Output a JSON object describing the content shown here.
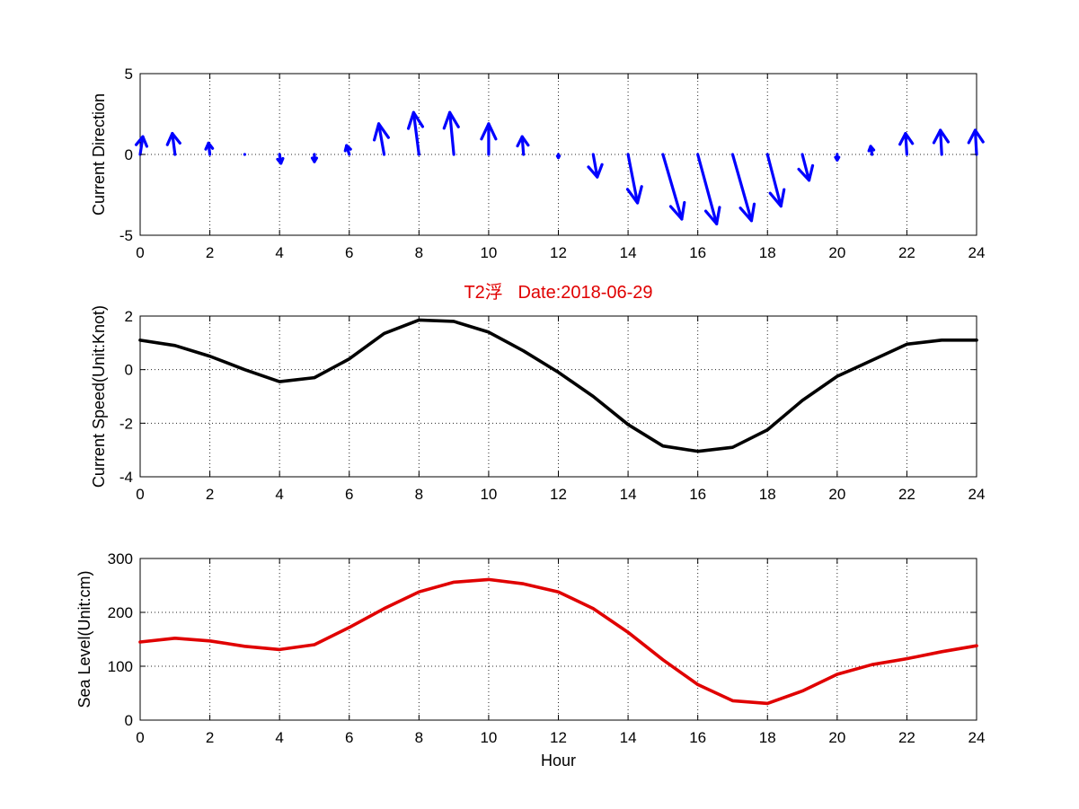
{
  "chart_data": [
    {
      "type": "quiver",
      "ylabel": "Current Direction",
      "xlim": [
        0,
        24
      ],
      "ylim": [
        -5,
        5
      ],
      "xticks": [
        "0",
        "2",
        "4",
        "6",
        "8",
        "10",
        "12",
        "14",
        "16",
        "18",
        "20",
        "22",
        "24"
      ],
      "yticks": [
        "5",
        "0",
        "-5"
      ],
      "grid": true,
      "color": "#0000ff",
      "x": [
        0,
        1,
        2,
        3,
        4,
        5,
        6,
        7,
        8,
        9,
        10,
        11,
        12,
        13,
        14,
        15,
        16,
        17,
        18,
        19,
        20,
        21,
        22,
        23,
        24
      ],
      "u": [
        0.1,
        -0.1,
        -0.05,
        0.0,
        0.05,
        0.0,
        -0.1,
        -0.2,
        -0.2,
        -0.15,
        0.0,
        -0.05,
        0.0,
        0.15,
        0.35,
        0.7,
        0.7,
        0.7,
        0.5,
        0.25,
        0.0,
        -0.05,
        -0.05,
        -0.05,
        -0.05
      ],
      "v": [
        1.1,
        1.3,
        0.7,
        -0.05,
        -0.55,
        -0.45,
        0.55,
        1.9,
        2.6,
        2.6,
        1.9,
        1.1,
        -0.2,
        -1.4,
        -3.0,
        -4.0,
        -4.3,
        -4.1,
        -3.2,
        -1.6,
        -0.35,
        0.5,
        1.3,
        1.5,
        1.5
      ]
    },
    {
      "type": "line",
      "title": "T2浮   Date:2018-06-29",
      "ylabel": "Current Speed(Unit:Knot)",
      "xlim": [
        0,
        24
      ],
      "ylim": [
        -4,
        2
      ],
      "xticks": [
        "0",
        "2",
        "4",
        "6",
        "8",
        "10",
        "12",
        "14",
        "16",
        "18",
        "20",
        "22",
        "24"
      ],
      "yticks": [
        "2",
        "0",
        "-2",
        "-4"
      ],
      "grid": true,
      "color": "#000000",
      "x": [
        0,
        1,
        2,
        3,
        4,
        5,
        6,
        7,
        8,
        9,
        10,
        11,
        12,
        13,
        14,
        15,
        16,
        17,
        18,
        19,
        20,
        21,
        22,
        23,
        24
      ],
      "y": [
        1.1,
        0.9,
        0.5,
        0.0,
        -0.45,
        -0.3,
        0.4,
        1.35,
        1.85,
        1.8,
        1.4,
        0.7,
        -0.1,
        -1.0,
        -2.05,
        -2.85,
        -3.05,
        -2.9,
        -2.25,
        -1.15,
        -0.25,
        0.35,
        0.95,
        1.1,
        1.1
      ]
    },
    {
      "type": "line",
      "xlabel": "Hour",
      "ylabel": "Sea Level(Unit:cm)",
      "xlim": [
        0,
        24
      ],
      "ylim": [
        0,
        300
      ],
      "xticks": [
        "0",
        "2",
        "4",
        "6",
        "8",
        "10",
        "12",
        "14",
        "16",
        "18",
        "20",
        "22",
        "24"
      ],
      "yticks": [
        "300",
        "200",
        "100",
        "0"
      ],
      "grid": true,
      "color": "#e00000",
      "x": [
        0,
        1,
        2,
        3,
        4,
        5,
        6,
        7,
        8,
        9,
        10,
        11,
        12,
        13,
        14,
        15,
        16,
        17,
        18,
        19,
        20,
        21,
        22,
        23,
        24
      ],
      "y": [
        145,
        152,
        147,
        137,
        131,
        140,
        172,
        207,
        238,
        256,
        261,
        253,
        238,
        207,
        163,
        112,
        66,
        36,
        31,
        54,
        85,
        103,
        114,
        127,
        138
      ]
    }
  ]
}
